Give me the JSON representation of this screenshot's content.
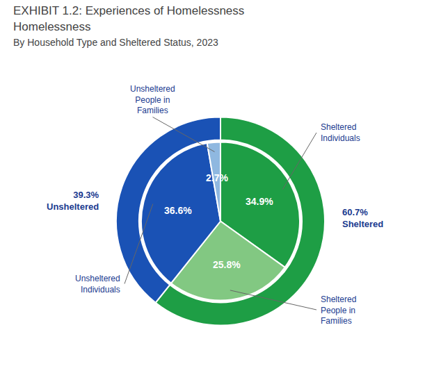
{
  "chart_data": {
    "type": "pie",
    "title": "EXHIBIT 1.2: Experiences of Homelessness\nHomelessness",
    "subtitle": "By Household Type and Sheltered Status, 2023",
    "series": [
      {
        "values": [
          60.7,
          39.3
        ],
        "colors": [
          "#1e9e45",
          "#1a52b5"
        ],
        "value_labels": [
          "60.7%\nSheltered",
          "39.3%\nUnsheltered"
        ]
      },
      {
        "values": [
          34.9,
          25.8,
          36.6,
          2.7
        ],
        "colors": [
          "#1e9e45",
          "#82c882",
          "#1a52b5",
          "#8fb8e0"
        ],
        "value_labels": [
          "34.9%",
          "25.8%",
          "36.6%",
          "2.7%"
        ],
        "categories": [
          "Sheltered\nIndividuals",
          "Sheltered\nPeople in\nFamilies",
          "Unsheltered\nIndividuals",
          "Unsheltered\nPeople in\nFamilies"
        ]
      }
    ],
    "data_labels": true
  }
}
